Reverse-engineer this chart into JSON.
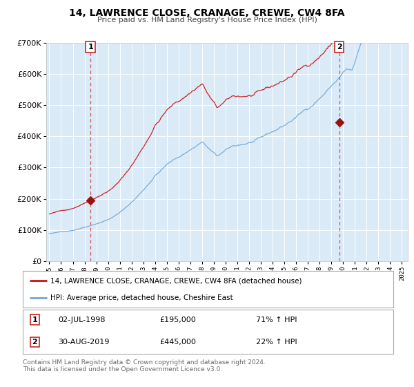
{
  "title": "14, LAWRENCE CLOSE, CRANAGE, CREWE, CW4 8FA",
  "subtitle": "Price paid vs. HM Land Registry's House Price Index (HPI)",
  "legend_line1": "14, LAWRENCE CLOSE, CRANAGE, CREWE, CW4 8FA (detached house)",
  "legend_line2": "HPI: Average price, detached house, Cheshire East",
  "marker1_date": "02-JUL-1998",
  "marker1_price": 195000,
  "marker1_hpi_pct": "71% ↑ HPI",
  "marker2_date": "30-AUG-2019",
  "marker2_price": 445000,
  "marker2_hpi_pct": "22% ↑ HPI",
  "footnote1": "Contains HM Land Registry data © Crown copyright and database right 2024.",
  "footnote2": "This data is licensed under the Open Government Licence v3.0.",
  "hpi_color": "#7aaddb",
  "property_color": "#cc2222",
  "marker_color": "#991111",
  "bg_color": "#daeaf7",
  "grid_color": "#ffffff",
  "outer_bg": "#f0f0f0",
  "ymin": 0,
  "ymax": 700000,
  "xmin": 1994.75,
  "xmax": 2025.5
}
